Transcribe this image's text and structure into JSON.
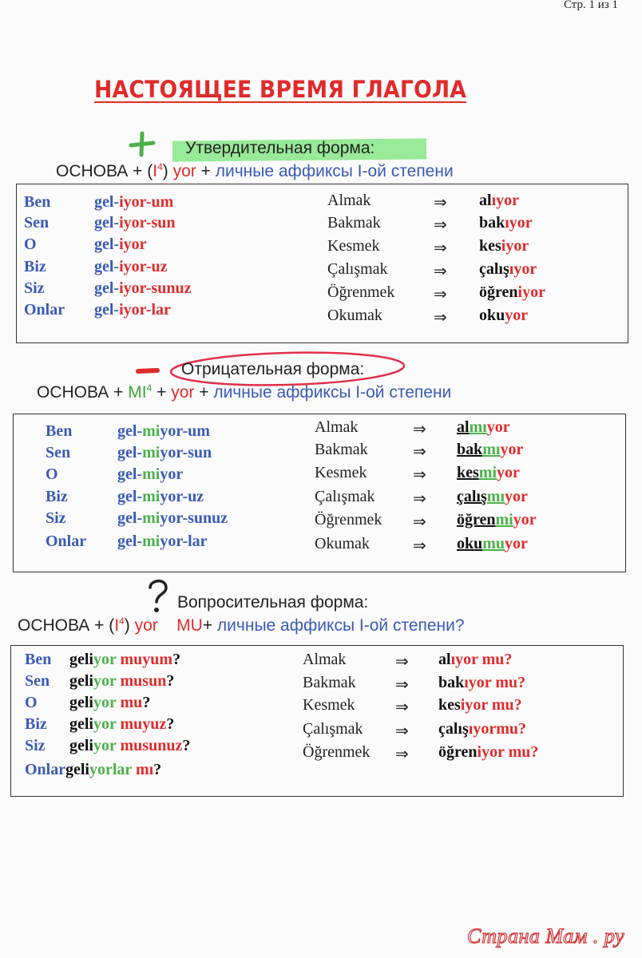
{
  "page_number": "Стр. 1 из 1",
  "title": "НАСТОЯЩЕЕ ВРЕМЯ ГЛАГОЛА",
  "affirmative": {
    "sign": "+",
    "heading": "Утвердительная форма:",
    "formula": [
      "ОСНОВА + (",
      "I",
      "4",
      ") ",
      "yor",
      " + ",
      "личные аффиксы I-ой  степени"
    ],
    "rows": [
      {
        "pron": "Ben",
        "stem": "gel-",
        "suffix": "iyor-um"
      },
      {
        "pron": "Sen",
        "stem": "gel-",
        "suffix": "iyor-sun"
      },
      {
        "pron": "O",
        "stem": "gel-",
        "suffix": "iyor"
      },
      {
        "pron": "Biz",
        "stem": "gel-",
        "suffix": "iyor-uz"
      },
      {
        "pron": "Siz",
        "stem": "gel-",
        "suffix": "iyor-sunuz"
      },
      {
        "pron": "Onlar",
        "stem": "gel-",
        "suffix": "iyor-lar"
      }
    ],
    "examples": [
      {
        "inf": "Almak",
        "arrow": "⇒",
        "stem": "al",
        "suffix": "ıyor"
      },
      {
        "inf": "Bakmak",
        "arrow": "⇒",
        "stem": "bak",
        "suffix": "ıyor"
      },
      {
        "inf": "Kesmek",
        "arrow": "⇒",
        "stem": "kes",
        "suffix": "iyor"
      },
      {
        "inf": "Çalışmak",
        "arrow": "⇒",
        "stem": "çalış",
        "suffix": "ıyor"
      },
      {
        "inf": "Öğrenmek",
        "arrow": "⇒",
        "stem": "öğren",
        "suffix": "iyor"
      },
      {
        "inf": "Okumak",
        "arrow": "⇒",
        "stem": "oku",
        "suffix": "yor"
      }
    ]
  },
  "negative": {
    "sign": "—",
    "heading": "Отрицательная форма:",
    "formula": [
      "ОСНОВА + ",
      "MI",
      "4",
      " + ",
      "yor",
      " + ",
      "личные аффиксы I-ой  степени"
    ],
    "rows": [
      {
        "pron": "Ben",
        "stem": "gel-",
        "mi": "mi",
        "suffix": "yor-um"
      },
      {
        "pron": "Sen",
        "stem": "gel-",
        "mi": "mi",
        "suffix": "yor-sun"
      },
      {
        "pron": "O",
        "stem": "gel-",
        "mi": "mi",
        "suffix": "yor"
      },
      {
        "pron": "Biz",
        "stem": "gel-",
        "mi": "mi",
        "suffix": "yor-uz"
      },
      {
        "pron": "Siz",
        "stem": "gel-",
        "mi": "mi",
        "suffix": "yor-sunuz"
      },
      {
        "pron": "Onlar",
        "stem": "gel-",
        "mi": "mi",
        "suffix": "yor-lar"
      }
    ],
    "examples": [
      {
        "inf": "Almak",
        "arrow": "⇒",
        "stem": "al",
        "mi": "mı",
        "suffix": "yor"
      },
      {
        "inf": "Bakmak",
        "arrow": "⇒",
        "stem": "bak",
        "mi": "mı",
        "suffix": "yor"
      },
      {
        "inf": "Kesmek",
        "arrow": "⇒",
        "stem": "kes",
        "mi": "mi",
        "suffix": "yor"
      },
      {
        "inf": "Çalışmak",
        "arrow": "⇒",
        "stem": "çalış",
        "mi": "mı",
        "suffix": "yor"
      },
      {
        "inf": "Öğrenmek",
        "arrow": "⇒",
        "stem": "öğren",
        "mi": "mi",
        "suffix": "yor"
      },
      {
        "inf": "Okumak",
        "arrow": "⇒",
        "stem": "oku",
        "mi": "mu",
        "suffix": "yor"
      }
    ]
  },
  "question": {
    "sign": "?",
    "heading": "Вопросительная форма:",
    "formula": [
      "ОСНОВА + (",
      "I",
      "4",
      ") ",
      "yor",
      "    ",
      "MU",
      "+ ",
      "личные аффиксы I-ой  степени?"
    ],
    "rows": [
      {
        "pron": "Ben",
        "stem": "geli",
        "suffix": "yor",
        "q": " muyum",
        "end": "?"
      },
      {
        "pron": "Sen",
        "stem": "geli",
        "suffix": "yor",
        "q": " musun",
        "end": "?"
      },
      {
        "pron": "O",
        "stem": "geli",
        "suffix": "yor",
        "q": " mu",
        "end": "?"
      },
      {
        "pron": "Biz",
        "stem": "geli",
        "suffix": "yor",
        "q": " muyuz",
        "end": "?"
      },
      {
        "pron": "Siz",
        "stem": "geli",
        "suffix": "yor",
        "q": " musunuz",
        "end": "?"
      },
      {
        "pron": "Onlar",
        "stem": "geli",
        "suffix": "yorlar",
        "q": " mı",
        "end": "?"
      }
    ],
    "examples": [
      {
        "inf": "Almak",
        "arrow": "⇒",
        "stem": "al",
        "suffix": "ıyor mu?"
      },
      {
        "inf": "Bakmak",
        "arrow": "⇒",
        "stem": "bak",
        "suffix": "ıyor mu?"
      },
      {
        "inf": "Kesmek",
        "arrow": "⇒",
        "stem": "kes",
        "suffix": "iyor mu?"
      },
      {
        "inf": "Çalışmak",
        "arrow": "⇒",
        "stem": "çalış",
        "suffix": "ıyormu?"
      },
      {
        "inf": "Öğrenmek",
        "arrow": "⇒",
        "stem": "öğren",
        "suffix": "iyor mu?"
      }
    ]
  },
  "watermark": "Страна Мам . ру",
  "colors": {
    "red": "#e02b2b",
    "blue": "#3a5ab5",
    "green": "#4cb04c",
    "highlight": "#7fe07f"
  }
}
